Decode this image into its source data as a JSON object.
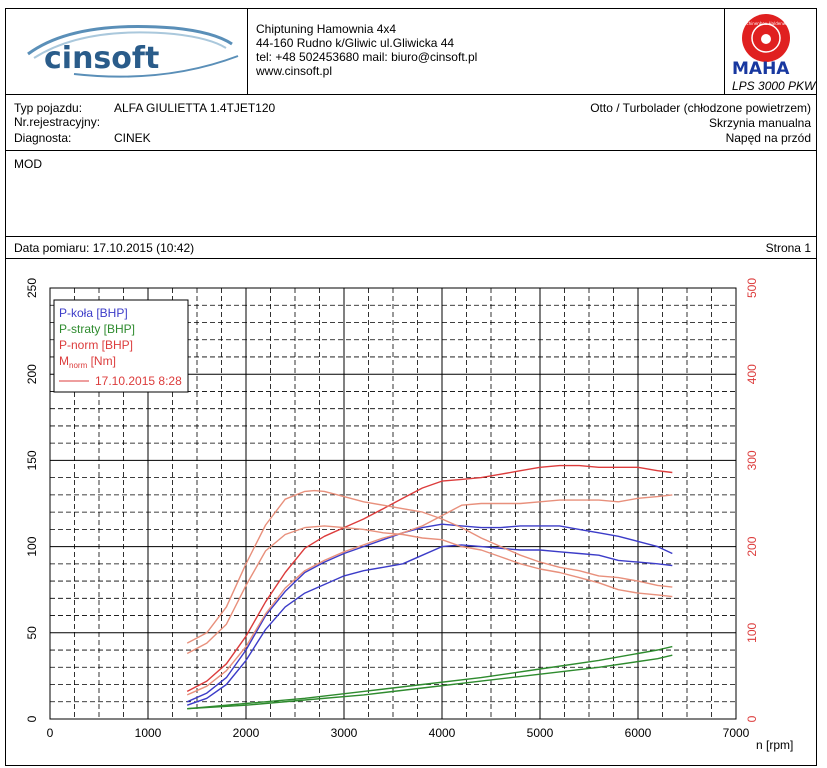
{
  "header": {
    "logo_text": "cinsoft",
    "company": "Chiptuning  Hamownia 4x4",
    "address": "44-160 Rudno k/Gliwic ul.Gliwicka 44",
    "contact": "tel: +48 502453680  mail: biuro@cinsoft.pl",
    "website": "www.cinsoft.pl",
    "maha_logo_text": "MAHA",
    "maha_ring_text": "Maschinenbau Haldenwang",
    "device": "LPS 3000 PKW"
  },
  "vehicle": {
    "type_label": "Typ pojazdu:",
    "type_value": "ALFA GIULIETTA 1.4TJET120",
    "reg_label": "Nr.rejestracyjny:",
    "reg_value": "",
    "diag_label": "Diagnosta:",
    "diag_value": "CINEK",
    "engine": "Otto / Turbolader (chłodzone powietrzem)",
    "gearbox": "Skrzynia manualna",
    "drive": "Napęd na przód"
  },
  "notes": "MOD",
  "measurement": {
    "date_label": "Data pomiaru: 17.10.2015 (10:42)",
    "page_label": "Strona 1"
  },
  "colors": {
    "blue": "#3c3cc8",
    "green": "#2e8b2e",
    "red": "#dc3c3c",
    "red_light": "#e8907c"
  },
  "chart_data": {
    "type": "line",
    "xlabel": "n [rpm]",
    "xlim": [
      0,
      7000
    ],
    "ylim_left": [
      0,
      250
    ],
    "ylim_right": [
      0,
      500
    ],
    "x_ticks": [
      "0",
      "1000",
      "2000",
      "3000",
      "4000",
      "5000",
      "6000",
      "7000"
    ],
    "y_left_ticks": [
      "0",
      "50",
      "100",
      "150",
      "200",
      "250"
    ],
    "y_right_ticks": [
      "0",
      "100",
      "200",
      "300",
      "400",
      "500"
    ],
    "grid": true,
    "legend": {
      "placement": "top-left",
      "items": [
        {
          "text": "P-koła [BHP]",
          "color": "#3c3cc8"
        },
        {
          "text": "P-straty [BHP]",
          "color": "#2e8b2e"
        },
        {
          "text": "P-norm [BHP]",
          "color": "#dc3c3c"
        },
        {
          "text_main": "M",
          "text_sub": "norm",
          "text_rest": " [Nm]",
          "color": "#dc3c3c"
        }
      ],
      "run_label": "17.10.2015 8:28"
    },
    "series": [
      {
        "name": "P-koła [BHP]",
        "axis": "left",
        "color": "#3c3cc8",
        "x": [
          1400,
          1600,
          1800,
          2000,
          2200,
          2400,
          2600,
          2800,
          3000,
          3200,
          3400,
          3600,
          3800,
          4000,
          4200,
          4400,
          4600,
          4800,
          5000,
          5200,
          5400,
          5600,
          5800,
          6000,
          6200,
          6350
        ],
        "y": [
          10,
          15,
          24,
          40,
          60,
          74,
          85,
          91,
          96,
          100,
          104,
          108,
          111,
          113,
          112,
          111,
          111,
          112,
          112,
          112,
          110,
          108,
          106,
          103,
          100,
          96
        ]
      },
      {
        "name": "P-koła [BHP]",
        "axis": "left",
        "color": "#3c3cc8",
        "x": [
          1400,
          1600,
          1800,
          2000,
          2200,
          2400,
          2600,
          2800,
          3000,
          3200,
          3400,
          3600,
          3800,
          4000,
          4200,
          4400,
          4600,
          4800,
          5000,
          5200,
          5400,
          5600,
          5800,
          6000,
          6200,
          6350
        ],
        "y": [
          8,
          12,
          20,
          34,
          52,
          65,
          73,
          78,
          83,
          86,
          88,
          90,
          95,
          100,
          101,
          100,
          99,
          98,
          98,
          97,
          96,
          95,
          92,
          91,
          90,
          89
        ]
      },
      {
        "name": "P-straty [BHP]",
        "axis": "left",
        "color": "#2e8b2e",
        "x": [
          1400,
          2000,
          2600,
          3200,
          3800,
          4400,
          5000,
          5600,
          6200,
          6350
        ],
        "y": [
          6,
          9,
          12,
          16,
          20,
          24,
          29,
          34,
          40,
          42
        ]
      },
      {
        "name": "P-straty [BHP]",
        "axis": "left",
        "color": "#2e8b2e",
        "x": [
          1400,
          2000,
          2600,
          3200,
          3800,
          4400,
          5000,
          5600,
          6200,
          6350
        ],
        "y": [
          6,
          8,
          11,
          14,
          18,
          22,
          26,
          30,
          35,
          37
        ]
      },
      {
        "name": "P-norm [BHP]",
        "axis": "left",
        "color": "#dc3c3c",
        "x": [
          1400,
          1600,
          1800,
          2000,
          2200,
          2400,
          2600,
          2800,
          3000,
          3200,
          3400,
          3600,
          3800,
          4000,
          4200,
          4400,
          4600,
          4800,
          5000,
          5200,
          5400,
          5600,
          5800,
          6000,
          6200,
          6350
        ],
        "y": [
          16,
          22,
          32,
          48,
          68,
          85,
          99,
          106,
          111,
          116,
          122,
          128,
          134,
          138,
          139,
          140,
          142,
          144,
          146,
          147,
          147,
          146,
          146,
          146,
          144,
          143
        ]
      },
      {
        "name": "P-norm [BHP]",
        "axis": "left",
        "color": "#e8907c",
        "x": [
          1400,
          1600,
          1800,
          2000,
          2200,
          2400,
          2600,
          2800,
          3000,
          3200,
          3400,
          3600,
          3800,
          4000,
          4200,
          4400,
          4600,
          4800,
          5000,
          5200,
          5400,
          5600,
          5800,
          6000,
          6200,
          6350
        ],
        "y": [
          14,
          19,
          28,
          42,
          61,
          76,
          86,
          92,
          97,
          101,
          105,
          108,
          112,
          118,
          124,
          125,
          125,
          125,
          126,
          127,
          127,
          127,
          126,
          128,
          129,
          130
        ]
      },
      {
        "name": "M_norm [Nm]",
        "axis": "right",
        "color": "#e8907c",
        "x": [
          1400,
          1600,
          1800,
          2000,
          2200,
          2400,
          2600,
          2700,
          2800,
          3000,
          3200,
          3400,
          3600,
          3800,
          4000,
          4200,
          4400,
          4600,
          4800,
          5000,
          5200,
          5400,
          5600,
          5800,
          6000,
          6200,
          6350
        ],
        "y": [
          88,
          100,
          130,
          180,
          225,
          255,
          264,
          265,
          264,
          258,
          252,
          248,
          244,
          240,
          232,
          222,
          210,
          200,
          190,
          182,
          176,
          172,
          166,
          164,
          160,
          155,
          153
        ]
      },
      {
        "name": "M_norm [Nm]",
        "axis": "right",
        "color": "#e8907c",
        "x": [
          1400,
          1600,
          1800,
          2000,
          2200,
          2400,
          2600,
          2800,
          3000,
          3200,
          3400,
          3600,
          3800,
          4000,
          4200,
          4400,
          4600,
          4800,
          5000,
          5200,
          5400,
          5600,
          5800,
          6000,
          6200,
          6350
        ],
        "y": [
          76,
          88,
          110,
          155,
          195,
          214,
          222,
          224,
          222,
          220,
          216,
          214,
          210,
          208,
          200,
          196,
          188,
          180,
          174,
          170,
          164,
          158,
          150,
          146,
          144,
          142
        ]
      }
    ]
  }
}
